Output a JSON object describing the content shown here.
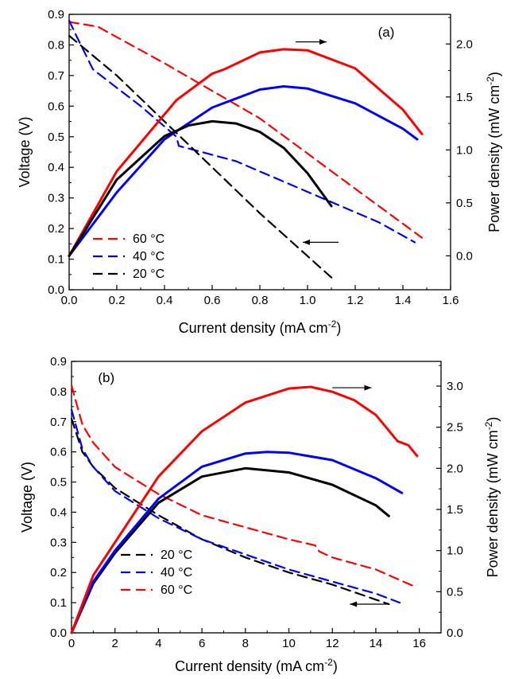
{
  "chart_data": [
    {
      "id": "a",
      "type": "line",
      "panel_label": "(a)",
      "xlabel": "Current density (mA cm",
      "xlabel_sup": "-2",
      "xlabel_tail": ")",
      "ylabel_left": "Voltage (V)",
      "ylabel_right": "Power density (mW cm",
      "ylabel_right_sup": "-2",
      "ylabel_right_tail": ")",
      "xlim": [
        0,
        1.6
      ],
      "ylim_left": [
        0,
        0.9
      ],
      "ylim_right": [
        -0.32,
        2.28
      ],
      "xticks": [
        "0.0",
        "0.2",
        "0.4",
        "0.6",
        "0.8",
        "1.0",
        "1.2",
        "1.4",
        "1.6"
      ],
      "yticks_left": [
        "0.0",
        "0.1",
        "0.2",
        "0.3",
        "0.4",
        "0.5",
        "0.6",
        "0.7",
        "0.8",
        "0.9"
      ],
      "yticks_right": [
        "0.0",
        "0.5",
        "1.0",
        "1.5",
        "2.0"
      ],
      "legend": {
        "placement": "lower-left",
        "entries": [
          "60 °C",
          "40 °C",
          "20 °C"
        ]
      },
      "series": [
        {
          "name": "60 °C",
          "kind": "voltage",
          "axis": "left",
          "style": "dashed",
          "color": "#ff0000",
          "x": [
            0,
            0.12,
            0.4,
            0.8,
            1.2,
            1.48
          ],
          "y": [
            0.875,
            0.86,
            0.74,
            0.56,
            0.33,
            0.17
          ]
        },
        {
          "name": "40 °C",
          "kind": "voltage",
          "axis": "left",
          "style": "dashed",
          "color": "#0000ff",
          "x": [
            0,
            0.03,
            0.1,
            0.3,
            0.45,
            0.46,
            0.7,
            1.0,
            1.3,
            1.45
          ],
          "y": [
            0.88,
            0.83,
            0.72,
            0.6,
            0.5,
            0.47,
            0.42,
            0.32,
            0.22,
            0.155
          ]
        },
        {
          "name": "20 °C",
          "kind": "voltage",
          "axis": "left",
          "style": "dashed",
          "color": "#000000",
          "x": [
            0,
            0.2,
            0.4,
            0.6,
            0.8,
            1.0,
            1.1
          ],
          "y": [
            0.83,
            0.7,
            0.55,
            0.4,
            0.25,
            0.11,
            0.04
          ]
        },
        {
          "name": "60 °C",
          "kind": "power",
          "axis": "right",
          "style": "solid",
          "color": "#ff0000",
          "x": [
            0,
            0.2,
            0.45,
            0.6,
            0.65,
            0.8,
            0.9,
            1.0,
            1.2,
            1.4,
            1.48
          ],
          "y": [
            0,
            0.8,
            1.47,
            1.72,
            1.76,
            1.92,
            1.95,
            1.94,
            1.77,
            1.38,
            1.15
          ]
        },
        {
          "name": "40 °C",
          "kind": "power",
          "axis": "right",
          "style": "solid",
          "color": "#0000ff",
          "x": [
            0,
            0.2,
            0.4,
            0.6,
            0.8,
            0.9,
            1.0,
            1.2,
            1.4,
            1.46
          ],
          "y": [
            0,
            0.6,
            1.1,
            1.4,
            1.57,
            1.6,
            1.58,
            1.44,
            1.2,
            1.1
          ]
        },
        {
          "name": "20 °C",
          "kind": "power",
          "axis": "right",
          "style": "solid",
          "color": "#000000",
          "x": [
            0,
            0.2,
            0.4,
            0.5,
            0.6,
            0.7,
            0.8,
            0.9,
            1.0,
            1.1
          ],
          "y": [
            0,
            0.72,
            1.13,
            1.23,
            1.27,
            1.25,
            1.17,
            1.02,
            0.78,
            0.47
          ]
        }
      ],
      "annotations": [
        {
          "type": "arrow",
          "direction": "right",
          "near_series": "60 °C power",
          "x_from": 0.95,
          "x_to": 1.08,
          "y_right": 2.02
        },
        {
          "type": "arrow",
          "direction": "left",
          "near_series": "voltage curves",
          "x_from": 1.13,
          "x_to": 0.98,
          "y_left": 0.155
        }
      ]
    },
    {
      "id": "b",
      "type": "line",
      "panel_label": "(b)",
      "xlabel": "Current density (mA cm",
      "xlabel_sup": "-2",
      "xlabel_tail": ")",
      "ylabel_left": "Voltage (V)",
      "ylabel_right": "Power density (mW cm",
      "ylabel_right_sup": "-2",
      "ylabel_right_tail": ")",
      "xlim": [
        0,
        17
      ],
      "ylim_left": [
        0,
        0.9
      ],
      "ylim_right": [
        0,
        3.3
      ],
      "xticks": [
        "0",
        "2",
        "4",
        "6",
        "8",
        "10",
        "12",
        "14",
        "16"
      ],
      "yticks_left": [
        "0.0",
        "0.1",
        "0.2",
        "0.3",
        "0.4",
        "0.5",
        "0.6",
        "0.7",
        "0.8",
        "0.9"
      ],
      "yticks_right": [
        "0.0",
        "0.5",
        "1.0",
        "1.5",
        "2.0",
        "2.5",
        "3.0"
      ],
      "legend": {
        "placement": "lower-left",
        "entries": [
          "20 °C",
          "40 °C",
          "60 °C"
        ]
      },
      "series": [
        {
          "name": "20 °C",
          "kind": "voltage",
          "axis": "left",
          "style": "dashed",
          "color": "#000000",
          "x": [
            0,
            0.5,
            1,
            2,
            4,
            6,
            8,
            10,
            12,
            14,
            14.6
          ],
          "y": [
            0.71,
            0.6,
            0.55,
            0.48,
            0.39,
            0.31,
            0.25,
            0.2,
            0.16,
            0.11,
            0.095
          ]
        },
        {
          "name": "40 °C",
          "kind": "voltage",
          "axis": "left",
          "style": "dashed",
          "color": "#0000ff",
          "x": [
            0,
            0.5,
            1,
            2,
            4,
            6,
            8,
            10,
            12,
            14,
            15.1
          ],
          "y": [
            0.74,
            0.61,
            0.55,
            0.47,
            0.38,
            0.31,
            0.26,
            0.21,
            0.17,
            0.13,
            0.1
          ]
        },
        {
          "name": "60 °C",
          "kind": "voltage",
          "axis": "left",
          "style": "dashed",
          "color": "#ff0000",
          "x": [
            0,
            0.5,
            1,
            2,
            4,
            6,
            8,
            10,
            11.2,
            11.4,
            12,
            14,
            15.9
          ],
          "y": [
            0.82,
            0.69,
            0.63,
            0.55,
            0.46,
            0.39,
            0.35,
            0.31,
            0.29,
            0.27,
            0.25,
            0.21,
            0.15
          ]
        },
        {
          "name": "20 °C",
          "kind": "power",
          "axis": "right",
          "style": "solid",
          "color": "#000000",
          "x": [
            0,
            1,
            2,
            4,
            6,
            8,
            10,
            12,
            14,
            14.6
          ],
          "y": [
            0,
            0.6,
            0.97,
            1.58,
            1.9,
            2.0,
            1.95,
            1.8,
            1.55,
            1.42
          ]
        },
        {
          "name": "40 °C",
          "kind": "power",
          "axis": "right",
          "style": "solid",
          "color": "#0000ff",
          "x": [
            0,
            1,
            2,
            4,
            6,
            8,
            9,
            10,
            12,
            14,
            15.2
          ],
          "y": [
            0,
            0.62,
            1.0,
            1.63,
            2.02,
            2.18,
            2.2,
            2.19,
            2.1,
            1.88,
            1.7
          ]
        },
        {
          "name": "60 °C",
          "kind": "power",
          "axis": "right",
          "style": "solid",
          "color": "#ff0000",
          "x": [
            0,
            1,
            2,
            4,
            6,
            8,
            10,
            11,
            12,
            13,
            14,
            15,
            15.5,
            15.9
          ],
          "y": [
            0,
            0.7,
            1.1,
            1.9,
            2.45,
            2.8,
            2.97,
            2.99,
            2.93,
            2.83,
            2.65,
            2.33,
            2.28,
            2.15
          ]
        }
      ],
      "annotations": [
        {
          "type": "arrow",
          "direction": "right",
          "near_series": "60 °C power",
          "x_from": 12,
          "x_to": 13.8,
          "y_right": 2.98
        },
        {
          "type": "arrow",
          "direction": "left",
          "near_series": "voltage curves",
          "x_from": 14.6,
          "x_to": 12.8,
          "y_left": 0.095
        }
      ]
    }
  ]
}
